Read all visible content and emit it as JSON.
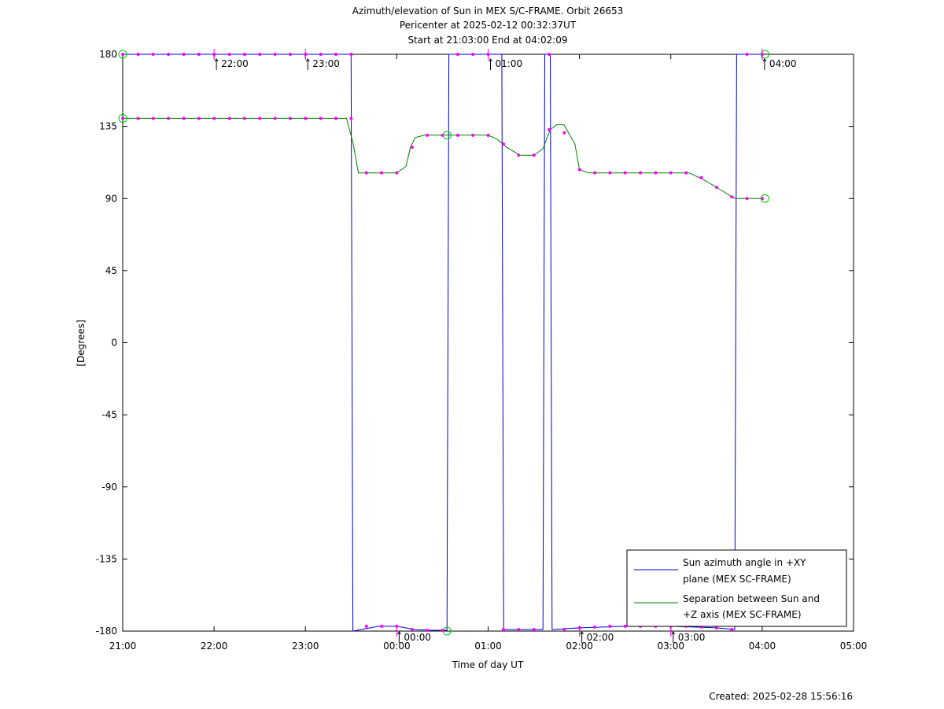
{
  "chart_data": {
    "type": "line",
    "title_lines": [
      "Azimuth/elevation of Sun in MEX S/C-FRAME.  Orbit 26653",
      "Pericenter at 2025-02-12 00:32:37UT",
      "Start at 21:03:00 End at 04:02:09"
    ],
    "xlabel": "Time of day UT",
    "ylabel": "[Degrees]",
    "footer": "Created: 2025-02-28 15:56:16",
    "x_unit": "hours since 21:00 UT",
    "xlim": [
      0,
      8
    ],
    "ylim": [
      -180,
      180
    ],
    "x_ticks": [
      {
        "x": 0,
        "label": "21:00"
      },
      {
        "x": 1,
        "label": "22:00"
      },
      {
        "x": 2,
        "label": "23:00"
      },
      {
        "x": 3,
        "label": "00:00"
      },
      {
        "x": 4,
        "label": "01:00"
      },
      {
        "x": 5,
        "label": "02:00"
      },
      {
        "x": 6,
        "label": "03:00"
      },
      {
        "x": 7,
        "label": "04:00"
      },
      {
        "x": 8,
        "label": "05:00"
      }
    ],
    "y_ticks": [
      {
        "y": 180,
        "label": "180"
      },
      {
        "y": 135,
        "label": "135"
      },
      {
        "y": 90,
        "label": "90"
      },
      {
        "y": 45,
        "label": "45"
      },
      {
        "y": 0,
        "label": "0"
      },
      {
        "y": -45,
        "label": "-45"
      },
      {
        "y": -90,
        "label": "-90"
      },
      {
        "y": -135,
        "label": "-135"
      },
      {
        "y": -180,
        "label": "-180"
      }
    ],
    "hour_annotations": [
      {
        "x": 1.0,
        "y": 180,
        "label": "22:00"
      },
      {
        "x": 2.0,
        "y": 180,
        "label": "23:00"
      },
      {
        "x": 3.0,
        "y": -180,
        "label": "00:00"
      },
      {
        "x": 4.0,
        "y": 180,
        "label": "01:00"
      },
      {
        "x": 5.0,
        "y": -180,
        "label": "02:00"
      },
      {
        "x": 6.0,
        "y": -180,
        "label": "03:00"
      },
      {
        "x": 7.0,
        "y": 180,
        "label": "04:00"
      }
    ],
    "series": [
      {
        "name": "Sun azimuth angle in +XY plane (MEX SC-FRAME)",
        "legend_lines": [
          "Sun azimuth angle in +XY",
          "plane (MEX SC-FRAME)"
        ],
        "color": "#0000cc",
        "points": [
          [
            0.0,
            180
          ],
          [
            2.5,
            180
          ],
          [
            2.52,
            -180
          ],
          [
            2.8,
            -177
          ],
          [
            3.0,
            -177
          ],
          [
            3.2,
            -179
          ],
          [
            3.4,
            -179.5
          ],
          [
            3.55,
            -179.5
          ],
          [
            3.57,
            180
          ],
          [
            4.15,
            180
          ],
          [
            4.17,
            -179
          ],
          [
            4.6,
            -179
          ],
          [
            4.62,
            180
          ],
          [
            4.68,
            180
          ],
          [
            4.7,
            -179
          ],
          [
            5.0,
            -178
          ],
          [
            5.5,
            -177
          ],
          [
            6.0,
            -177
          ],
          [
            6.5,
            -178
          ],
          [
            6.7,
            -179
          ],
          [
            6.72,
            180
          ],
          [
            7.03,
            180
          ]
        ]
      },
      {
        "name": "Separation between Sun and +Z axis (MEX SC-FRAME)",
        "legend_lines": [
          "Separation between Sun and",
          "+Z axis (MEX SC-FRAME)"
        ],
        "color": "#008000",
        "points": [
          [
            0.0,
            140
          ],
          [
            2.45,
            140
          ],
          [
            2.52,
            125
          ],
          [
            2.58,
            106
          ],
          [
            2.65,
            106
          ],
          [
            3.0,
            106
          ],
          [
            3.1,
            110
          ],
          [
            3.15,
            122
          ],
          [
            3.2,
            128
          ],
          [
            3.3,
            129.5
          ],
          [
            3.6,
            129.5
          ],
          [
            4.0,
            129.5
          ],
          [
            4.1,
            127
          ],
          [
            4.2,
            122
          ],
          [
            4.35,
            117
          ],
          [
            4.5,
            117
          ],
          [
            4.6,
            121
          ],
          [
            4.68,
            133
          ],
          [
            4.75,
            136
          ],
          [
            4.83,
            136
          ],
          [
            4.95,
            124
          ],
          [
            5.0,
            108
          ],
          [
            5.1,
            106
          ],
          [
            6.0,
            106
          ],
          [
            6.2,
            106
          ],
          [
            6.35,
            102
          ],
          [
            6.5,
            97
          ],
          [
            6.7,
            90
          ],
          [
            7.0,
            90
          ]
        ]
      }
    ],
    "sample_markers": {
      "color": "#ff00ff",
      "points": [
        [
          0.0,
          180
        ],
        [
          0.167,
          180
        ],
        [
          0.333,
          180
        ],
        [
          0.5,
          180
        ],
        [
          0.667,
          180
        ],
        [
          0.833,
          180
        ],
        [
          1.0,
          180
        ],
        [
          1.167,
          180
        ],
        [
          1.333,
          180
        ],
        [
          1.5,
          180
        ],
        [
          1.667,
          180
        ],
        [
          1.833,
          180
        ],
        [
          2.0,
          180
        ],
        [
          2.167,
          180
        ],
        [
          2.333,
          180
        ],
        [
          2.5,
          180
        ],
        [
          2.667,
          -177
        ],
        [
          2.833,
          -177
        ],
        [
          3.0,
          -177
        ],
        [
          3.167,
          -179
        ],
        [
          3.333,
          -179.5
        ],
        [
          3.5,
          -179.5
        ],
        [
          3.667,
          180
        ],
        [
          3.833,
          180
        ],
        [
          4.0,
          180
        ],
        [
          4.167,
          -179
        ],
        [
          4.333,
          -179
        ],
        [
          4.5,
          -179
        ],
        [
          4.667,
          180
        ],
        [
          4.833,
          -179
        ],
        [
          5.0,
          -178
        ],
        [
          5.167,
          -177.5
        ],
        [
          5.333,
          -177
        ],
        [
          5.5,
          -177
        ],
        [
          5.667,
          -177
        ],
        [
          5.833,
          -177
        ],
        [
          6.0,
          -177
        ],
        [
          6.167,
          -177
        ],
        [
          6.333,
          -177.5
        ],
        [
          6.5,
          -178
        ],
        [
          6.667,
          -179
        ],
        [
          6.833,
          180
        ],
        [
          7.0,
          180
        ],
        [
          0.0,
          140
        ],
        [
          0.167,
          140
        ],
        [
          0.333,
          140
        ],
        [
          0.5,
          140
        ],
        [
          0.667,
          140
        ],
        [
          0.833,
          140
        ],
        [
          1.0,
          140
        ],
        [
          1.167,
          140
        ],
        [
          1.333,
          140
        ],
        [
          1.5,
          140
        ],
        [
          1.667,
          140
        ],
        [
          1.833,
          140
        ],
        [
          2.0,
          140
        ],
        [
          2.167,
          140
        ],
        [
          2.333,
          140
        ],
        [
          2.5,
          140
        ],
        [
          2.667,
          106
        ],
        [
          2.833,
          106
        ],
        [
          3.0,
          106
        ],
        [
          3.167,
          122
        ],
        [
          3.333,
          129.5
        ],
        [
          3.5,
          129.5
        ],
        [
          3.667,
          129.5
        ],
        [
          3.833,
          129.5
        ],
        [
          4.0,
          129.5
        ],
        [
          4.167,
          124
        ],
        [
          4.333,
          117
        ],
        [
          4.5,
          117
        ],
        [
          4.667,
          133
        ],
        [
          4.833,
          131
        ],
        [
          5.0,
          108
        ],
        [
          5.167,
          106
        ],
        [
          5.333,
          106
        ],
        [
          5.5,
          106
        ],
        [
          5.667,
          106
        ],
        [
          5.833,
          106
        ],
        [
          6.0,
          106
        ],
        [
          6.167,
          106
        ],
        [
          6.333,
          103
        ],
        [
          6.5,
          97
        ],
        [
          6.667,
          91
        ],
        [
          6.833,
          90
        ],
        [
          7.0,
          90
        ]
      ]
    },
    "circle_markers": {
      "color": "#00cc00",
      "points": [
        [
          0.0,
          180
        ],
        [
          0.0,
          140
        ],
        [
          3.55,
          -180
        ],
        [
          3.55,
          129.5
        ],
        [
          7.03,
          180
        ],
        [
          7.03,
          90
        ]
      ]
    },
    "legend": {
      "placement": "bottom-right"
    },
    "grid": false
  }
}
